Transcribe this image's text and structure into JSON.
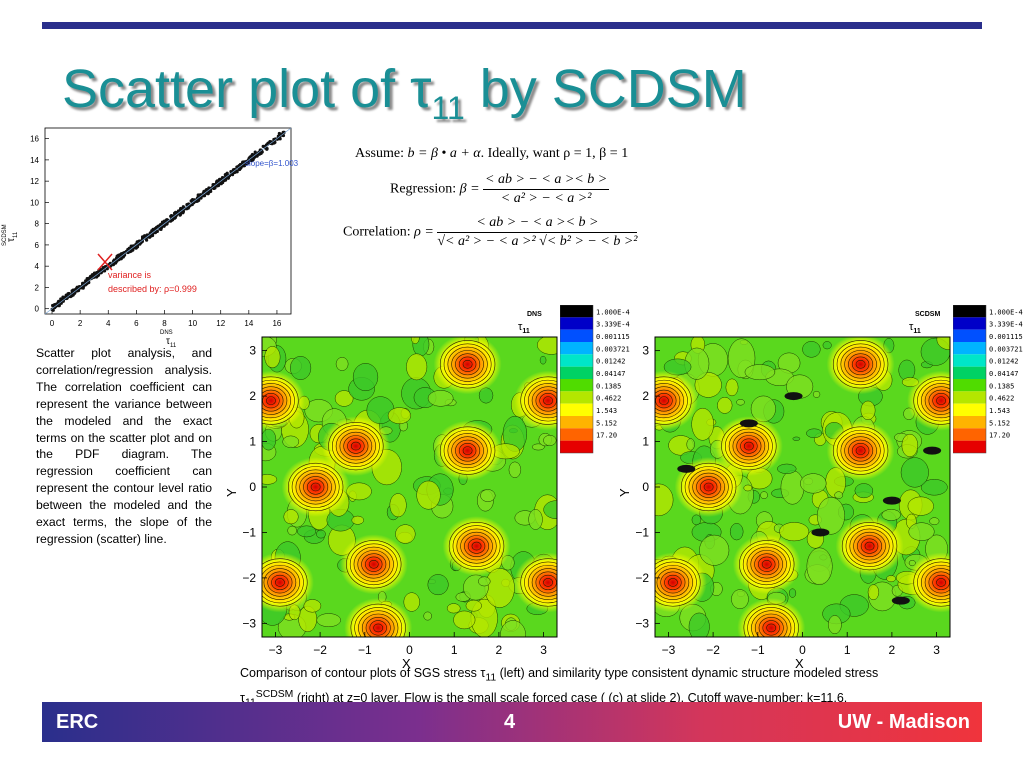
{
  "slide": {
    "title_main": "Scatter plot of τ",
    "title_sub": "11",
    "title_end": " by SCDSM",
    "page_number": "4",
    "footer_left": "ERC",
    "footer_right": "UW - Madison"
  },
  "scatter": {
    "x_ticks": [
      "0",
      "2",
      "4",
      "6",
      "8",
      "10",
      "12",
      "14",
      "16"
    ],
    "y_ticks": [
      "0",
      "2",
      "4",
      "6",
      "8",
      "10",
      "12",
      "14",
      "16"
    ],
    "x_label_main": "τ",
    "x_label_sub": "11",
    "x_label_sup": "DNS",
    "y_label_main": "τ",
    "y_label_sub": "11",
    "y_label_sup": "SCDSM",
    "slope_text": "slope=β=1.003",
    "variance_line1": "variance is",
    "variance_line2": "described by: ρ=0.999"
  },
  "equations": {
    "assume_label": "Assume:",
    "assume_expr": "b = β • a + α",
    "assume_rest": ". Ideally, want ρ = 1, β = 1",
    "regression_label": "Regression:",
    "regression_lhs": "β =",
    "regression_num": "< ab > − < a >< b >",
    "regression_den": "< a² > − < a >²",
    "correlation_label": "Correlation:",
    "correlation_lhs": "ρ =",
    "correlation_num": "< ab > − < a >< b >",
    "correlation_den": "√< a² > − < a >² √< b² > − < b >²"
  },
  "description": "Scatter plot analysis, and correlation/regression analysis. The correlation coefficient can represent the variance between the modeled and the exact terms on the scatter plot and on the PDF diagram. The regression coefficient can represent the contour level ratio between the modeled and the exact terms, the slope of the regression (scatter) line.",
  "contour_left": {
    "label_main": "τ",
    "label_sub": "11",
    "label_sup": "DNS",
    "x_label": "X",
    "y_label": "Y"
  },
  "contour_right": {
    "label_main": "τ",
    "label_sub": "11",
    "label_sup": "SCDSM",
    "x_label": "X",
    "y_label": "Y"
  },
  "contour_axis": {
    "x_ticks": [
      "−3",
      "−2",
      "−1",
      "0",
      "1",
      "2",
      "3"
    ],
    "y_ticks": [
      "3",
      "2",
      "1",
      "0",
      "−1",
      "−2",
      "−3"
    ]
  },
  "legend_levels": [
    "1.000E-4",
    "3.339E-4",
    "0.001115",
    "0.003721",
    "0.01242",
    "0.04147",
    "0.1385",
    "0.4622",
    "1.543",
    "5.152",
    "17.20"
  ],
  "legend_colors": [
    "#000000",
    "#0000c8",
    "#0050ff",
    "#00b4ff",
    "#00e6c8",
    "#00d264",
    "#50dc00",
    "#b4e600",
    "#ffff00",
    "#ffb400",
    "#ff6400",
    "#e60000"
  ],
  "caption_line1": "Comparison of contour plots of SGS stress τ",
  "caption_sub1": "11",
  "caption_mid": " (left) and similarity type consistent dynamic structure modeled stress",
  "caption_tau2": "τ",
  "caption_sub2": "11",
  "caption_sup2": "SCDSM",
  "caption_end": " (right) at z=0 layer. Flow is the small scale forced case ( (c) at slide 2). Cutoff wave-number: k=11.6.",
  "colors": {
    "title": "#1a8f95",
    "bar": "#2a2f8c",
    "field_green": "#5ad81e",
    "hot_red": "#e60000"
  },
  "chart_data": [
    {
      "type": "scatter",
      "x": [
        0,
        1,
        2,
        3,
        4,
        5,
        6,
        7,
        8,
        9,
        10,
        11,
        12,
        13,
        14,
        15,
        16.5
      ],
      "y": [
        0,
        1.1,
        2.0,
        3.1,
        4.0,
        5.0,
        6.0,
        7.0,
        8.0,
        9.0,
        10.0,
        11.0,
        12.0,
        13.0,
        14.0,
        15.0,
        16.5
      ],
      "xlim": [
        -0.5,
        17
      ],
      "ylim": [
        -0.5,
        17
      ],
      "grid": false
    },
    {
      "type": "heatmap",
      "name": "contour_DNS",
      "xlim": [
        -3.3,
        3.3
      ],
      "ylim": [
        -3.3,
        3.3
      ],
      "peaks": [
        {
          "x": -3.1,
          "y": 1.9
        },
        {
          "x": 1.3,
          "y": 2.7
        },
        {
          "x": 3.1,
          "y": 1.9
        },
        {
          "x": -1.2,
          "y": 0.9
        },
        {
          "x": 1.3,
          "y": 0.8
        },
        {
          "x": -2.1,
          "y": 0.0
        },
        {
          "x": 1.5,
          "y": -1.3
        },
        {
          "x": -0.8,
          "y": -1.7
        },
        {
          "x": -2.9,
          "y": -2.1
        },
        {
          "x": 3.1,
          "y": -2.1
        },
        {
          "x": -0.7,
          "y": -3.1
        }
      ]
    },
    {
      "type": "heatmap",
      "name": "contour_SCDSM",
      "xlim": [
        -3.3,
        3.3
      ],
      "ylim": [
        -3.3,
        3.3
      ],
      "peaks": [
        {
          "x": -3.1,
          "y": 1.9
        },
        {
          "x": 1.3,
          "y": 2.7
        },
        {
          "x": 3.1,
          "y": 1.9
        },
        {
          "x": -1.2,
          "y": 0.9
        },
        {
          "x": 1.3,
          "y": 0.8
        },
        {
          "x": -2.1,
          "y": 0.0
        },
        {
          "x": 1.5,
          "y": -1.3
        },
        {
          "x": -0.8,
          "y": -1.7
        },
        {
          "x": -2.9,
          "y": -2.1
        },
        {
          "x": 3.1,
          "y": -2.1
        },
        {
          "x": -0.7,
          "y": -3.1
        }
      ]
    }
  ]
}
